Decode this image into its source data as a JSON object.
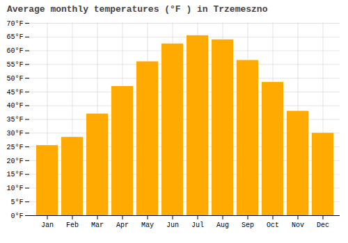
{
  "chart_data": {
    "type": "bar",
    "title": "Average monthly temperatures (°F ) in Trzemeszno",
    "categories": [
      "Jan",
      "Feb",
      "Mar",
      "Apr",
      "May",
      "Jun",
      "Jul",
      "Aug",
      "Sep",
      "Oct",
      "Nov",
      "Dec"
    ],
    "values": [
      25.5,
      28.5,
      37.0,
      47.0,
      56.0,
      62.5,
      65.5,
      64.0,
      56.5,
      48.5,
      38.0,
      30.0
    ],
    "color": "#FFAA00",
    "ylim": [
      0,
      70
    ],
    "yticks": [
      {
        "value": 0,
        "label": "0°F"
      },
      {
        "value": 5,
        "label": "5°F"
      },
      {
        "value": 10,
        "label": "10°F"
      },
      {
        "value": 15,
        "label": "15°F"
      },
      {
        "value": 20,
        "label": "20°F"
      },
      {
        "value": 25,
        "label": "25°F"
      },
      {
        "value": 30,
        "label": "30°F"
      },
      {
        "value": 35,
        "label": "35°F"
      },
      {
        "value": 40,
        "label": "40°F"
      },
      {
        "value": 45,
        "label": "45°F"
      },
      {
        "value": 50,
        "label": "50°F"
      },
      {
        "value": 55,
        "label": "55°F"
      },
      {
        "value": 60,
        "label": "60°F"
      },
      {
        "value": 65,
        "label": "65°F"
      },
      {
        "value": 70,
        "label": "70°F"
      }
    ],
    "grid": true
  }
}
